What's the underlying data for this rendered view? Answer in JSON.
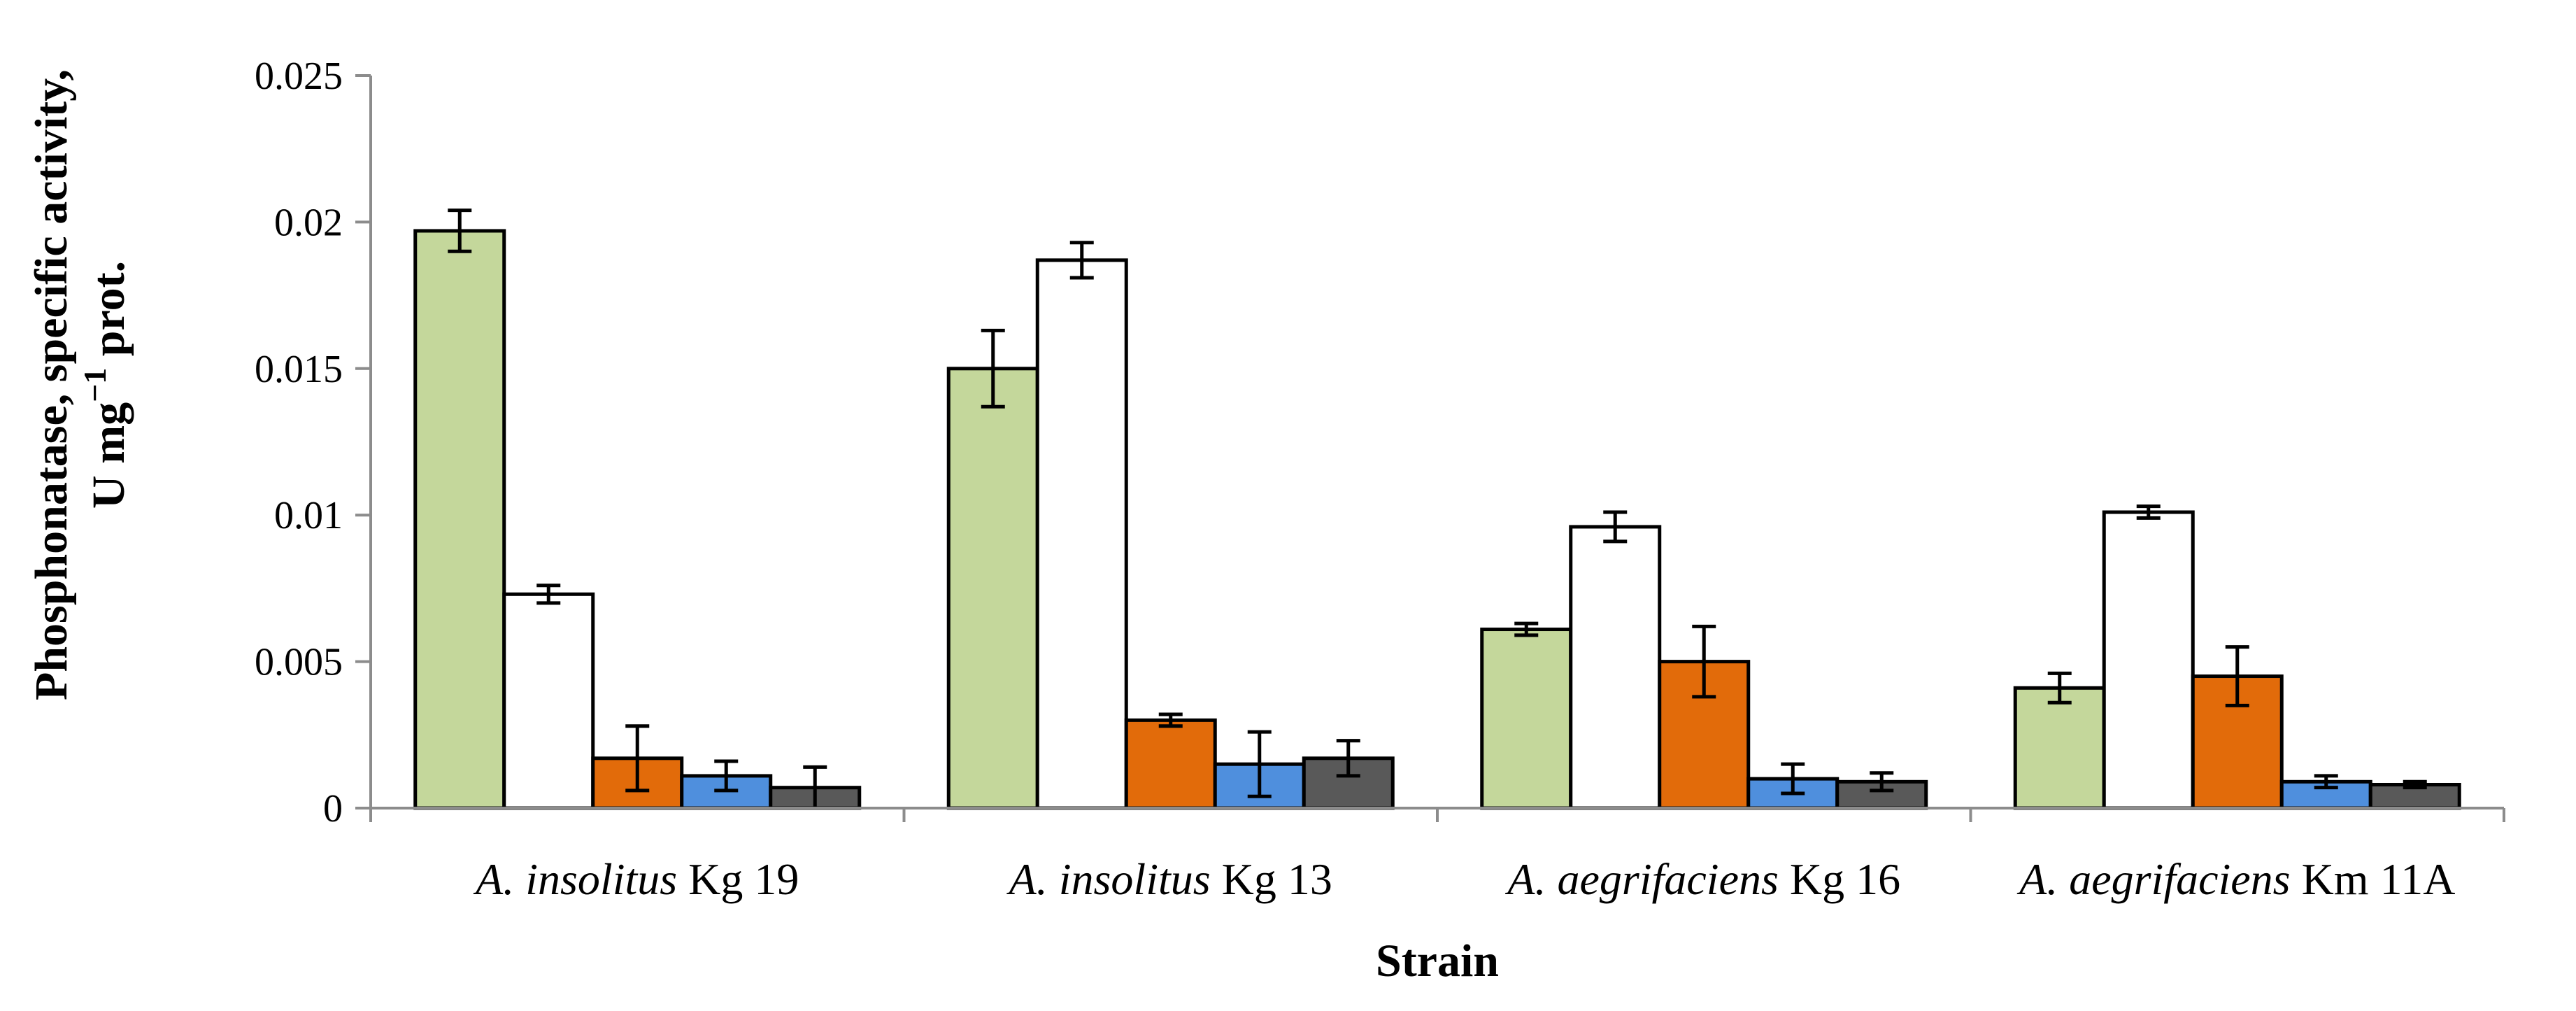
{
  "chart_data": {
    "type": "bar",
    "title": "",
    "xlabel": "Strain",
    "ylabel_line1": "Phosphonatase, specific activity,",
    "ylabel_line2_prefix": "U mg",
    "ylabel_line2_sup": "−1",
    "ylabel_line2_suffix": " prot.",
    "ylim": [
      0,
      0.025
    ],
    "yticks": [
      0,
      0.005,
      0.01,
      0.015,
      0.02,
      0.025
    ],
    "ytick_labels": [
      "0",
      "0.005",
      "0.01",
      "0.015",
      "0.02",
      "0.025"
    ],
    "categories": [
      {
        "italic": "A. insolitus",
        "rest": " Kg 19"
      },
      {
        "italic": "A. insolitus",
        "rest": " Kg 13"
      },
      {
        "italic": "A. aegrifaciens",
        "rest": " Kg 16"
      },
      {
        "italic": "A. aegrifaciens",
        "rest": " Km 11A"
      }
    ],
    "series": [
      {
        "name": "series-1",
        "color": "#c4d79b",
        "values": [
          0.0197,
          0.015,
          0.0061,
          0.0041
        ],
        "errors": [
          0.0007,
          0.0013,
          0.0002,
          0.0005
        ]
      },
      {
        "name": "series-2",
        "color": "#ffffff",
        "values": [
          0.0073,
          0.0187,
          0.0096,
          0.0101
        ],
        "errors": [
          0.0003,
          0.0006,
          0.0005,
          0.0002
        ]
      },
      {
        "name": "series-3",
        "color": "#e26b0a",
        "values": [
          0.0017,
          0.003,
          0.005,
          0.0045
        ],
        "errors": [
          0.0011,
          0.0002,
          0.0012,
          0.001
        ]
      },
      {
        "name": "series-4",
        "color": "#4f8fdd",
        "values": [
          0.0011,
          0.0015,
          0.001,
          0.0009
        ],
        "errors": [
          0.0005,
          0.0011,
          0.0005,
          0.0002
        ]
      },
      {
        "name": "series-5",
        "color": "#595959",
        "values": [
          0.0007,
          0.0017,
          0.0009,
          0.0008
        ],
        "errors": [
          0.0007,
          0.0006,
          0.0003,
          0.0001
        ]
      }
    ]
  }
}
